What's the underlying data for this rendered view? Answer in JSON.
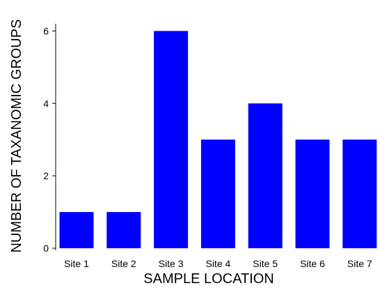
{
  "chart_data": {
    "type": "bar",
    "categories": [
      "Site 1",
      "Site 2",
      "Site 3",
      "Site 4",
      "Site 5",
      "Site 6",
      "Site 7"
    ],
    "values": [
      1,
      1,
      6,
      3,
      4,
      3,
      3
    ],
    "title": "",
    "xlabel": "SAMPLE LOCATION",
    "ylabel": "NUMBER OF TAXANOMIC GROUPS",
    "ylim": [
      0,
      6.2
    ],
    "yticks": [
      0,
      2,
      4,
      6
    ],
    "grid": false,
    "bar_color": "#0000ff"
  }
}
